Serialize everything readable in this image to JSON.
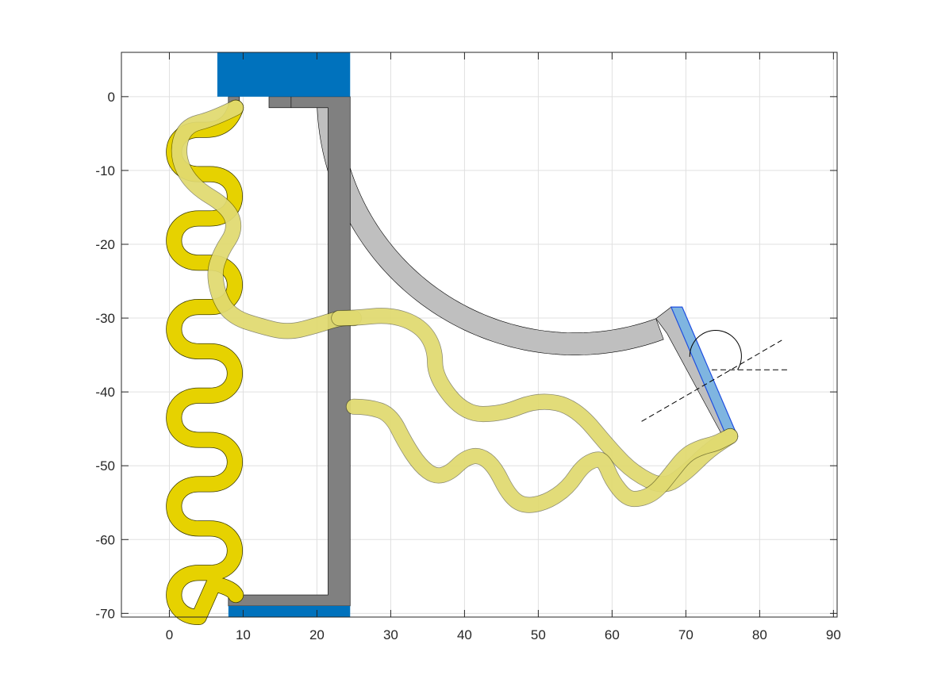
{
  "chart_data": {
    "type": "diagram-plot",
    "title": "",
    "xlabel": "",
    "ylabel": "",
    "xlim": [
      -6.5,
      90.5
    ],
    "ylim": [
      -70.5,
      6
    ],
    "grid": true,
    "xticks": [
      0,
      10,
      20,
      30,
      40,
      50,
      60,
      70,
      80,
      90
    ],
    "yticks": [
      0,
      -10,
      -20,
      -30,
      -40,
      -50,
      -60,
      -70
    ],
    "xtick_labels": [
      "0",
      "10",
      "20",
      "30",
      "40",
      "50",
      "60",
      "70",
      "80",
      "90"
    ],
    "ytick_labels": [
      "0",
      "-10",
      "-20",
      "-30",
      "-40",
      "-50",
      "-60",
      "-70"
    ],
    "colors": {
      "anchor_blue": "#0072BD",
      "frame_dark_gray": "#808080",
      "arc_light_gray": "#BFBFBF",
      "spring_yellow": "#E6D200",
      "spring_yellow_translucent": "#F2EB7A",
      "tip_light_blue": "#7FB5E0",
      "tip_edge_blue": "#1F4FE0",
      "grid": "#E0E0E0",
      "axes": "#262626"
    },
    "shapes": {
      "top_anchor": [
        [
          6.5,
          0
        ],
        [
          24.5,
          0
        ],
        [
          24.5,
          6
        ],
        [
          6.5,
          6
        ]
      ],
      "bottom_anchor": [
        [
          8,
          -70.5
        ],
        [
          24.5,
          -70.5
        ],
        [
          24.5,
          -69
        ],
        [
          8,
          -69
        ]
      ],
      "left_tab": [
        [
          8,
          -1.5
        ],
        [
          9.5,
          -1.5
        ],
        [
          9.5,
          0
        ],
        [
          8,
          0
        ]
      ],
      "top_bar": [
        [
          13.5,
          -1.5
        ],
        [
          21.5,
          -1.5
        ],
        [
          21.5,
          -67.5
        ],
        [
          8,
          -67.5
        ],
        [
          8,
          -69
        ],
        [
          24.5,
          -69
        ],
        [
          24.5,
          0
        ],
        [
          13.5,
          0
        ]
      ],
      "top_bar_seam_x": 16.5,
      "arc": {
        "center": [
          55,
          0
        ],
        "inner_radius": 32,
        "outer_radius": 35,
        "theta_start_deg": 180,
        "theta_end_deg": 290
      },
      "tip": [
        [
          69.5,
          -28.5
        ],
        [
          77,
          -46
        ],
        [
          75.5,
          -46
        ],
        [
          68,
          -28.5
        ]
      ],
      "angle_annotation": {
        "pivot": [
          73.5,
          -37
        ],
        "tilted_line": [
          [
            64,
            -44
          ],
          [
            83,
            -33
          ]
        ],
        "horizontal_line": [
          [
            73.5,
            -37
          ],
          [
            84,
            -37
          ]
        ],
        "arc_radius": 3.5
      }
    },
    "series": [
      {
        "kind": "serpentine-spring",
        "start": [
          9,
          -1.5
        ],
        "amplitude_left_x": 1,
        "amplitude_right_x": 8.5,
        "wavelength": 11.5,
        "rows": 11,
        "end": [
          9,
          -67.5
        ],
        "stroke_width": 2
      },
      {
        "kind": "translucent-spring-left",
        "x": [
          9,
          6,
          2,
          1,
          3,
          8,
          9,
          7,
          6,
          7,
          9,
          12,
          16,
          20,
          23,
          25
        ],
        "y": [
          -1.5,
          -3,
          -4,
          -8,
          -12,
          -15,
          -18,
          -21,
          -24,
          -28,
          -30,
          -31,
          -32,
          -31,
          -30,
          -30
        ]
      },
      {
        "kind": "translucent-spring-right",
        "x": [
          23,
          25,
          30,
          34,
          36,
          36,
          40,
          45,
          50,
          55,
          60,
          63,
          67,
          70,
          73,
          76
        ],
        "y": [
          -30,
          -30,
          -29.5,
          -31,
          -34,
          -38,
          -43,
          -43,
          -41,
          -42,
          -48,
          -51,
          -53,
          -51,
          -48,
          -46
        ]
      },
      {
        "kind": "translucent-spring-main",
        "x": [
          25,
          27,
          30,
          32,
          34,
          36,
          38,
          40,
          42,
          44,
          46,
          48,
          51,
          54,
          56,
          58,
          59,
          60,
          62,
          64,
          66,
          68,
          70,
          72,
          74,
          75,
          76
        ],
        "y": [
          -42,
          -42,
          -43,
          -47,
          -50,
          -51.5,
          -51,
          -49,
          -48.5,
          -50,
          -54,
          -55.5,
          -55,
          -53,
          -50,
          -49,
          -49.5,
          -52,
          -54.5,
          -54.5,
          -53.5,
          -51,
          -48.5,
          -47.5,
          -47,
          -46.5,
          -46
        ]
      }
    ]
  }
}
